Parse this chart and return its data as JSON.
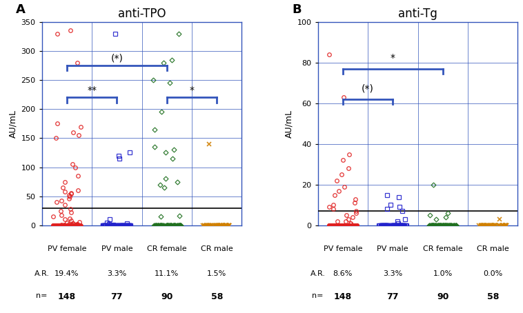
{
  "panel_A_title": "anti-TPO",
  "panel_B_title": "anti-Tg",
  "panel_A_label": "A",
  "panel_B_label": "B",
  "ylabel": "AU/mL",
  "categories": [
    "PV female",
    "PV male",
    "CR female",
    "CR male"
  ],
  "AR_A": [
    "19.4%",
    "3.3%",
    "11.1%",
    "1.5%"
  ],
  "AR_B": [
    "8.6%",
    "3.3%",
    "1.0%",
    "0.0%"
  ],
  "n_values": [
    "148",
    "77",
    "90",
    "58"
  ],
  "colors": [
    "#e02020",
    "#2222cc",
    "#207020",
    "#d08000"
  ],
  "A_ylim": [
    0,
    350
  ],
  "B_ylim": [
    0,
    100
  ],
  "A_yticks": [
    0,
    50,
    100,
    150,
    200,
    250,
    300,
    350
  ],
  "B_yticks": [
    0,
    20,
    40,
    60,
    80,
    100
  ],
  "threshold_A": 30,
  "threshold_B": 7,
  "pv_female_A": [
    0,
    0,
    0,
    0,
    0,
    0,
    0,
    0,
    0,
    0,
    0,
    0,
    0,
    0,
    0,
    0,
    0,
    0,
    0,
    0,
    0,
    0,
    0,
    0,
    0,
    0,
    0,
    0,
    0,
    0,
    0,
    0,
    0,
    0,
    0,
    0,
    0,
    0,
    0,
    0,
    0,
    0,
    0,
    0,
    0,
    0,
    0,
    0,
    0,
    0,
    0,
    0,
    0,
    0,
    0,
    0,
    0,
    0,
    0,
    0,
    0,
    0,
    0,
    0,
    0,
    0,
    0,
    0,
    0,
    0,
    0,
    0,
    0,
    0,
    0,
    0,
    0,
    0,
    0,
    0,
    0,
    0,
    0,
    0,
    0,
    0,
    0,
    0,
    0,
    0,
    0,
    0,
    0,
    0,
    0,
    0,
    0,
    0,
    0,
    0,
    0,
    0,
    0,
    0,
    0,
    0,
    0,
    0,
    0,
    0,
    0,
    1,
    1,
    1,
    1,
    1,
    2,
    2,
    2,
    3,
    4,
    5,
    6,
    8,
    10,
    12,
    15,
    18,
    22,
    25,
    28,
    35,
    40,
    42,
    46,
    50,
    52,
    54,
    56,
    58,
    60,
    65,
    75,
    85,
    100,
    105,
    150,
    155,
    160,
    170,
    175,
    280,
    330,
    335
  ],
  "pv_male_A": [
    0,
    0,
    0,
    0,
    0,
    0,
    0,
    0,
    0,
    0,
    0,
    0,
    0,
    0,
    0,
    0,
    0,
    0,
    0,
    0,
    0,
    0,
    0,
    0,
    0,
    0,
    0,
    0,
    0,
    0,
    0,
    0,
    0,
    0,
    0,
    0,
    0,
    0,
    0,
    0,
    0,
    0,
    0,
    0,
    0,
    0,
    0,
    0,
    0,
    0,
    0,
    0,
    0,
    0,
    0,
    0,
    0,
    0,
    0,
    0,
    0,
    0,
    0,
    0,
    0,
    0,
    0,
    0,
    0,
    0,
    0,
    0,
    0,
    1,
    2,
    3,
    5,
    10,
    115,
    120,
    125,
    330
  ],
  "cr_female_A": [
    0,
    0,
    0,
    0,
    0,
    0,
    0,
    0,
    0,
    0,
    0,
    0,
    0,
    0,
    0,
    0,
    0,
    0,
    0,
    0,
    0,
    0,
    0,
    0,
    0,
    0,
    0,
    0,
    0,
    0,
    0,
    0,
    0,
    0,
    0,
    0,
    0,
    0,
    0,
    0,
    0,
    0,
    0,
    0,
    0,
    0,
    0,
    0,
    0,
    0,
    0,
    0,
    0,
    0,
    0,
    0,
    0,
    0,
    0,
    0,
    0,
    0,
    0,
    0,
    0,
    0,
    0,
    0,
    0,
    0,
    0,
    0,
    0,
    0,
    0,
    0,
    0,
    0,
    0,
    0,
    15,
    17,
    65,
    70,
    75,
    80,
    115,
    125,
    130,
    135,
    165,
    195,
    245,
    250,
    280,
    285,
    330
  ],
  "cr_male_A": [
    0,
    0,
    0,
    0,
    0,
    0,
    0,
    0,
    0,
    0,
    0,
    0,
    0,
    0,
    0,
    0,
    0,
    0,
    0,
    0,
    0,
    0,
    0,
    0,
    0,
    0,
    0,
    0,
    0,
    0,
    0,
    0,
    0,
    0,
    0,
    0,
    0,
    0,
    0,
    0,
    0,
    0,
    0,
    0,
    0,
    0,
    0,
    0,
    0,
    0,
    0,
    0,
    0,
    0,
    0,
    0,
    0,
    140
  ],
  "pv_female_B": [
    0,
    0,
    0,
    0,
    0,
    0,
    0,
    0,
    0,
    0,
    0,
    0,
    0,
    0,
    0,
    0,
    0,
    0,
    0,
    0,
    0,
    0,
    0,
    0,
    0,
    0,
    0,
    0,
    0,
    0,
    0,
    0,
    0,
    0,
    0,
    0,
    0,
    0,
    0,
    0,
    0,
    0,
    0,
    0,
    0,
    0,
    0,
    0,
    0,
    0,
    0,
    0,
    0,
    0,
    0,
    0,
    0,
    0,
    0,
    0,
    0,
    0,
    0,
    0,
    0,
    0,
    0,
    0,
    0,
    0,
    0,
    0,
    0,
    0,
    0,
    0,
    0,
    0,
    0,
    0,
    0,
    0,
    0,
    0,
    0,
    0,
    0,
    0,
    0,
    0,
    0,
    0,
    0,
    0,
    0,
    0,
    0,
    0,
    0,
    0,
    1,
    1,
    2,
    2,
    3,
    4,
    5,
    6,
    7,
    8,
    9,
    10,
    11,
    13,
    15,
    17,
    19,
    22,
    25,
    28,
    32,
    35,
    63,
    84,
    0,
    0,
    0,
    0,
    0,
    0,
    0,
    0,
    0,
    0,
    0,
    0,
    0,
    0,
    0,
    0,
    0,
    0,
    0,
    0,
    0,
    0,
    0,
    0
  ],
  "pv_male_B": [
    0,
    0,
    0,
    0,
    0,
    0,
    0,
    0,
    0,
    0,
    0,
    0,
    0,
    0,
    0,
    0,
    0,
    0,
    0,
    0,
    0,
    0,
    0,
    0,
    0,
    0,
    0,
    0,
    0,
    0,
    0,
    0,
    0,
    0,
    0,
    0,
    0,
    0,
    0,
    0,
    0,
    0,
    0,
    0,
    0,
    0,
    0,
    0,
    0,
    0,
    0,
    0,
    0,
    0,
    0,
    0,
    0,
    0,
    0,
    0,
    0,
    0,
    0,
    0,
    0,
    0,
    0,
    0,
    0,
    0,
    0,
    0,
    0,
    1,
    2,
    3,
    7,
    8,
    9,
    10,
    14,
    15
  ],
  "cr_female_B": [
    0,
    0,
    0,
    0,
    0,
    0,
    0,
    0,
    0,
    0,
    0,
    0,
    0,
    0,
    0,
    0,
    0,
    0,
    0,
    0,
    0,
    0,
    0,
    0,
    0,
    0,
    0,
    0,
    0,
    0,
    0,
    0,
    0,
    0,
    0,
    0,
    0,
    0,
    0,
    0,
    0,
    0,
    0,
    0,
    0,
    0,
    0,
    0,
    0,
    0,
    0,
    0,
    0,
    0,
    0,
    0,
    0,
    0,
    0,
    0,
    0,
    0,
    0,
    0,
    0,
    0,
    0,
    0,
    0,
    0,
    0,
    0,
    0,
    0,
    0,
    0,
    0,
    0,
    0,
    0,
    0,
    0,
    0,
    0,
    0,
    0,
    0,
    0,
    0,
    3,
    4,
    5,
    6,
    20
  ],
  "cr_male_B": [
    0,
    0,
    0,
    0,
    0,
    0,
    0,
    0,
    0,
    0,
    0,
    0,
    0,
    0,
    0,
    0,
    0,
    0,
    0,
    0,
    0,
    0,
    0,
    0,
    0,
    0,
    0,
    0,
    0,
    0,
    0,
    0,
    0,
    0,
    0,
    0,
    0,
    0,
    0,
    0,
    0,
    0,
    0,
    0,
    0,
    0,
    0,
    0,
    0,
    0,
    0,
    0,
    0,
    0,
    0,
    0,
    0,
    3
  ],
  "bracket_color": "#3355bb",
  "brackets_A": [
    [
      0.0,
      1.0,
      220,
      "**",
      224
    ],
    [
      0.0,
      2.0,
      275,
      "(*)",
      279
    ],
    [
      2.0,
      3.0,
      220,
      "*",
      224
    ]
  ],
  "brackets_B": [
    [
      0.0,
      1.0,
      62,
      "(*)",
      65
    ],
    [
      0.0,
      2.0,
      77,
      "*",
      80
    ]
  ]
}
